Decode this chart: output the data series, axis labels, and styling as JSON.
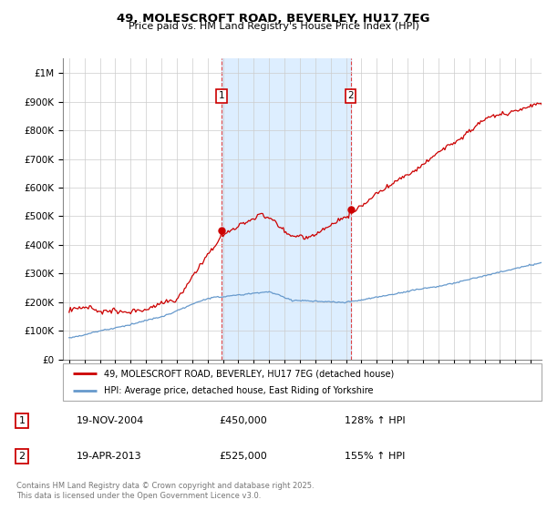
{
  "title": "49, MOLESCROFT ROAD, BEVERLEY, HU17 7EG",
  "subtitle": "Price paid vs. HM Land Registry's House Price Index (HPI)",
  "legend_line1": "49, MOLESCROFT ROAD, BEVERLEY, HU17 7EG (detached house)",
  "legend_line2": "HPI: Average price, detached house, East Riding of Yorkshire",
  "annotation1_label": "1",
  "annotation1_date": "19-NOV-2004",
  "annotation1_price": "£450,000",
  "annotation1_hpi": "128% ↑ HPI",
  "annotation2_label": "2",
  "annotation2_date": "19-APR-2013",
  "annotation2_price": "£525,000",
  "annotation2_hpi": "155% ↑ HPI",
  "footer": "Contains HM Land Registry data © Crown copyright and database right 2025.\nThis data is licensed under the Open Government Licence v3.0.",
  "red_color": "#cc0000",
  "blue_color": "#6699cc",
  "shading_color": "#ddeeff",
  "vline_color": "#dd4444",
  "grid_color": "#cccccc",
  "ylim": [
    0,
    1050000
  ],
  "yticks": [
    0,
    100000,
    200000,
    300000,
    400000,
    500000,
    600000,
    700000,
    800000,
    900000,
    1000000
  ],
  "ytick_labels": [
    "£0",
    "£100K",
    "£200K",
    "£300K",
    "£400K",
    "£500K",
    "£600K",
    "£700K",
    "£800K",
    "£900K",
    "£1M"
  ],
  "sale1_year": 2004.917,
  "sale1_price": 450000,
  "sale2_year": 2013.292,
  "sale2_price": 525000
}
